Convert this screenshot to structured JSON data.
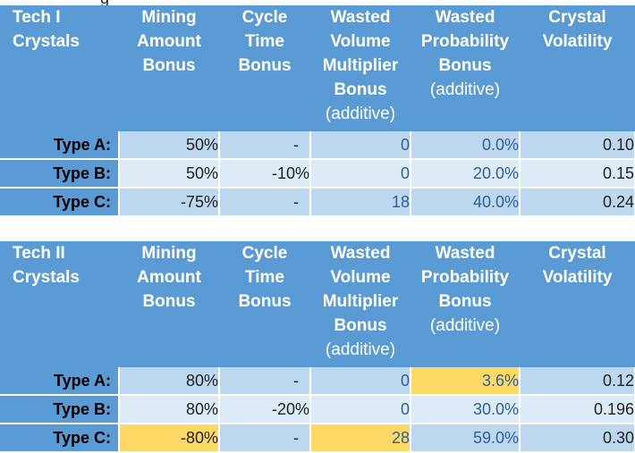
{
  "tables": [
    {
      "title_lines": [
        "Tech I",
        "Crystals"
      ],
      "columns": [
        {
          "lines": [
            "Mining",
            "Amount",
            "Bonus"
          ]
        },
        {
          "lines": [
            "Cycle",
            "Time",
            "Bonus"
          ]
        },
        {
          "lines": [
            "Wasted",
            "Volume",
            "Multiplier",
            "Bonus"
          ],
          "note": "(additive)"
        },
        {
          "lines": [
            "Wasted",
            "Probability",
            "Bonus"
          ],
          "note": "(additive)"
        },
        {
          "lines": [
            "Crystal",
            "Volatility"
          ]
        }
      ],
      "rows": [
        {
          "label": "Type A:",
          "values": [
            "50%",
            "-",
            "0",
            "0.0%",
            "0.10"
          ]
        },
        {
          "label": "Type B:",
          "values": [
            "50%",
            "-10%",
            "0",
            "20.0%",
            "0.15"
          ]
        },
        {
          "label": "Type C:",
          "values": [
            "-75%",
            "-",
            "18",
            "40.0%",
            "0.24"
          ]
        }
      ]
    },
    {
      "title_lines": [
        "Tech II",
        "Crystals"
      ],
      "columns": [
        {
          "lines": [
            "Mining",
            "Amount",
            "Bonus"
          ]
        },
        {
          "lines": [
            "Cycle",
            "Time",
            "Bonus"
          ]
        },
        {
          "lines": [
            "Wasted",
            "Volume",
            "Multiplier",
            "Bonus"
          ],
          "note": "(additive)"
        },
        {
          "lines": [
            "Wasted",
            "Probability",
            "Bonus"
          ],
          "note": "(additive)"
        },
        {
          "lines": [
            "Crystal",
            "Volatility"
          ]
        }
      ],
      "rows": [
        {
          "label": "Type A:",
          "values": [
            "80%",
            "-",
            "0",
            "3.6%",
            "0.12"
          ]
        },
        {
          "label": "Type B:",
          "values": [
            "80%",
            "-20%",
            "0",
            "30.0%",
            "0.196"
          ]
        },
        {
          "label": "Type C:",
          "values": [
            "-80%",
            "-",
            "28",
            "59.0%",
            "0.30"
          ]
        }
      ]
    }
  ],
  "colors": {
    "header_blue": "#5b9bd5",
    "row_dark": "#bdd7ee",
    "row_light": "#ddebf7",
    "highlight": "#ffd966",
    "value_blue": "#2e5f9e"
  }
}
